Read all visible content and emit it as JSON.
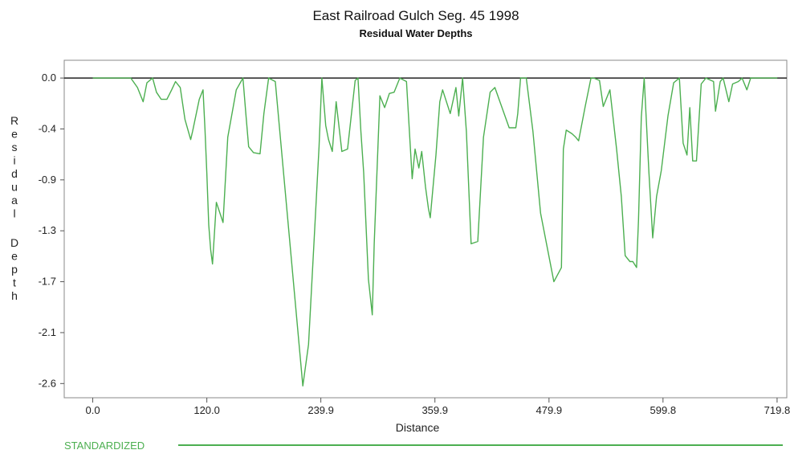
{
  "chart_data": {
    "type": "line",
    "title": "East Railroad Gulch Seg. 45  1998",
    "subtitle": "Residual Water Depths",
    "xlabel": "Distance",
    "ylabel": "Residual Depth",
    "xlim": [
      -30,
      730
    ],
    "ylim": [
      -2.7,
      0.15
    ],
    "xticks": [
      "0.0",
      "120.0",
      "239.9",
      "359.9",
      "479.9",
      "599.8",
      "719.8"
    ],
    "xtick_values": [
      0,
      120,
      239.9,
      359.9,
      479.9,
      599.8,
      719.8
    ],
    "yticks": [
      "0.0",
      "-0.4",
      "-0.9",
      "-1.3",
      "-1.7",
      "-2.1",
      "-2.6"
    ],
    "ytick_values": [
      0.0,
      -0.43,
      -0.86,
      -1.29,
      -1.72,
      -2.15,
      -2.58
    ],
    "grid": false,
    "legend_position": "bottom-left",
    "series": [
      {
        "name": "STANDARDIZED",
        "color": "#4caf50",
        "x": [
          0,
          40,
          47,
          53,
          57,
          63,
          67,
          72,
          78,
          83,
          87,
          92,
          97,
          103,
          105,
          112,
          116,
          118,
          120,
          122,
          124,
          126,
          130,
          137,
          142,
          151,
          158,
          161,
          164,
          169,
          176,
          180,
          185,
          192,
          221,
          227,
          233,
          238,
          241,
          245,
          248,
          252,
          256,
          262,
          268,
          276,
          279,
          282,
          285,
          290,
          294,
          296,
          302,
          307,
          310,
          312,
          317,
          323,
          330,
          336,
          339,
          343,
          346,
          350,
          353,
          355,
          361,
          365,
          368,
          376,
          382,
          385,
          389,
          393,
          398,
          405,
          411,
          418,
          423,
          438,
          445,
          447,
          450,
          456,
          463,
          471,
          485,
          493,
          495,
          498,
          504,
          508,
          511,
          518,
          524,
          527,
          533,
          537,
          544,
          551,
          556,
          560,
          565,
          568,
          572,
          574,
          577,
          580,
          585,
          589,
          593,
          598,
          605,
          611,
          617,
          621,
          625,
          628,
          631,
          635,
          640,
          645,
          653,
          655,
          660,
          663,
          669,
          673,
          679,
          683,
          688,
          692,
          698,
          702,
          705,
          710,
          720
        ],
        "values": [
          0,
          0,
          -0.08,
          -0.2,
          -0.04,
          0,
          -0.12,
          -0.18,
          -0.18,
          -0.1,
          -0.03,
          -0.08,
          -0.35,
          -0.52,
          -0.45,
          -0.18,
          -0.1,
          -0.43,
          -0.8,
          -1.24,
          -1.45,
          -1.57,
          -1.05,
          -1.22,
          -0.5,
          -0.1,
          0,
          -0.3,
          -0.58,
          -0.63,
          -0.64,
          -0.3,
          0,
          -0.03,
          -2.6,
          -2.25,
          -1.35,
          -0.58,
          0,
          -0.4,
          -0.52,
          -0.62,
          -0.2,
          -0.62,
          -0.6,
          -0.02,
          0,
          -0.45,
          -0.8,
          -1.7,
          -2.0,
          -1.4,
          -0.15,
          -0.25,
          -0.18,
          -0.13,
          -0.12,
          0,
          -0.03,
          -0.85,
          -0.6,
          -0.76,
          -0.62,
          -0.92,
          -1.1,
          -1.18,
          -0.65,
          -0.2,
          -0.1,
          -0.3,
          -0.08,
          -0.32,
          0,
          -0.45,
          -1.4,
          -1.38,
          -0.5,
          -0.12,
          -0.08,
          -0.42,
          -0.42,
          -0.3,
          0,
          0,
          -0.45,
          -1.14,
          -1.72,
          -1.6,
          -0.6,
          -0.44,
          -0.47,
          -0.5,
          -0.53,
          -0.24,
          0,
          0,
          -0.02,
          -0.24,
          -0.1,
          -0.6,
          -1.0,
          -1.5,
          -1.55,
          -1.55,
          -1.6,
          -1.2,
          -0.33,
          0,
          -0.8,
          -1.35,
          -1.0,
          -0.78,
          -0.32,
          -0.04,
          0,
          -0.55,
          -0.65,
          -0.25,
          -0.7,
          -0.7,
          -0.05,
          0,
          -0.03,
          -0.28,
          -0.03,
          0,
          -0.2,
          -0.05,
          -0.03,
          0,
          -0.1,
          0,
          0,
          0,
          0,
          0,
          0
        ]
      }
    ]
  }
}
